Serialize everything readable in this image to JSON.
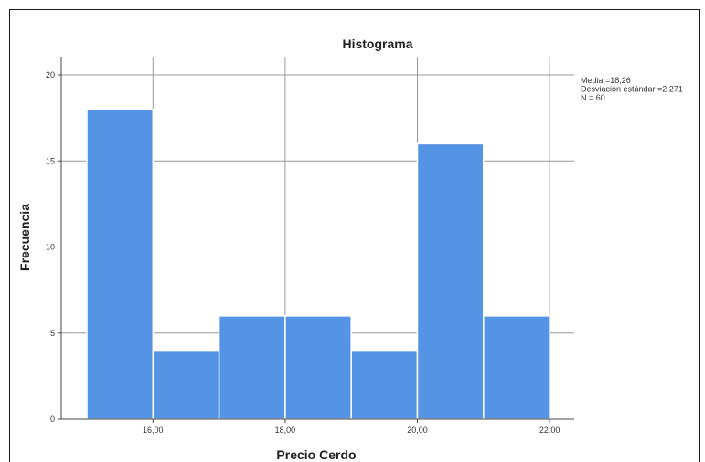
{
  "chart_data": {
    "type": "bar",
    "title": "Histograma",
    "xlabel": "Precio Cerdo",
    "ylabel": "Frecuencia",
    "bins": [
      {
        "from": 15,
        "to": 16,
        "count": 18
      },
      {
        "from": 16,
        "to": 17,
        "count": 4
      },
      {
        "from": 17,
        "to": 18,
        "count": 6
      },
      {
        "from": 18,
        "to": 19,
        "count": 6
      },
      {
        "from": 19,
        "to": 20,
        "count": 4
      },
      {
        "from": 20,
        "to": 21,
        "count": 16
      },
      {
        "from": 21,
        "to": 22,
        "count": 6
      }
    ],
    "xlim": [
      14.05,
      22.4
    ],
    "ylim": [
      0,
      20
    ],
    "x_ticks": [
      16,
      18,
      20,
      22
    ],
    "x_tick_labels": [
      "16,00",
      "18,00",
      "20,00",
      "22,00"
    ],
    "y_ticks": [
      0,
      5,
      10,
      15,
      20
    ],
    "y_tick_labels": [
      "0",
      "5",
      "10",
      "15",
      "20"
    ],
    "grid": true,
    "bar_color": "#5593e4",
    "stats": [
      "Media =18,26",
      "Desviación estándar =2,271",
      "N = 60"
    ]
  }
}
